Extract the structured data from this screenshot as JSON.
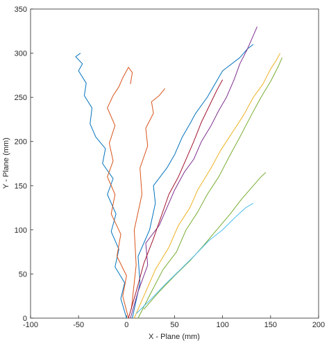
{
  "chart_data": {
    "type": "line",
    "xlabel": "X - Plane (mm)",
    "ylabel": "Y - Plane (mm)",
    "xlim": [
      -100,
      200
    ],
    "xticks": [
      -100,
      -50,
      0,
      50,
      100,
      150,
      200
    ],
    "ylim": [
      0,
      350
    ],
    "yticks": [
      0,
      50,
      100,
      150,
      200,
      250,
      300,
      350
    ],
    "series": [
      {
        "color": "#0072BD",
        "x": [
          0,
          -6,
          -2,
          -12,
          -8,
          -16,
          -11,
          -20,
          -14,
          -25,
          -22,
          -32,
          -38,
          -36,
          -44,
          -42,
          -50,
          -46,
          -53,
          -48
        ],
        "values": [
          0,
          22,
          40,
          58,
          78,
          98,
          118,
          140,
          158,
          175,
          192,
          205,
          220,
          238,
          252,
          266,
          280,
          288,
          296,
          300
        ]
      },
      {
        "color": "#D95319",
        "x": [
          2,
          -4,
          0,
          -10,
          -6,
          -16,
          -12,
          -20,
          -14,
          -18,
          -12,
          -20,
          -14,
          -8,
          -4,
          2,
          6,
          4
        ],
        "values": [
          0,
          25,
          48,
          70,
          95,
          118,
          140,
          160,
          178,
          198,
          218,
          238,
          252,
          262,
          272,
          284,
          278,
          265
        ]
      },
      {
        "color": "#D95319",
        "x": [
          5,
          10,
          8,
          16,
          14,
          22,
          20,
          28,
          26,
          34,
          40
        ],
        "values": [
          10,
          60,
          100,
          140,
          170,
          195,
          215,
          232,
          245,
          252,
          260
        ]
      },
      {
        "color": "#0072BD",
        "x": [
          6,
          14,
          12,
          24,
          30,
          28,
          42,
          50,
          58,
          66,
          72,
          84,
          92,
          100,
          106,
          118,
          126,
          132
        ],
        "values": [
          0,
          40,
          70,
          100,
          130,
          150,
          170,
          185,
          205,
          220,
          232,
          250,
          265,
          280,
          285,
          295,
          305,
          310
        ]
      },
      {
        "color": "#7E2F8E",
        "x": [
          4,
          12,
          22,
          20,
          34,
          42,
          50,
          60,
          70,
          78,
          88,
          96,
          104,
          112,
          118,
          126,
          132,
          136
        ],
        "values": [
          0,
          30,
          60,
          85,
          105,
          125,
          145,
          165,
          180,
          200,
          218,
          235,
          250,
          270,
          288,
          305,
          320,
          330
        ]
      },
      {
        "color": "#EDB120",
        "x": [
          8,
          20,
          30,
          44,
          54,
          66,
          74,
          88,
          98,
          110,
          122,
          132,
          142,
          150,
          156,
          160
        ],
        "values": [
          0,
          30,
          55,
          80,
          105,
          125,
          145,
          170,
          190,
          210,
          230,
          250,
          265,
          282,
          292,
          300
        ]
      },
      {
        "color": "#77AC30",
        "x": [
          12,
          26,
          38,
          52,
          62,
          74,
          84,
          96,
          108,
          118,
          130,
          140,
          150,
          158,
          162
        ],
        "values": [
          0,
          30,
          55,
          75,
          100,
          120,
          140,
          160,
          185,
          205,
          230,
          250,
          268,
          285,
          295
        ]
      },
      {
        "color": "#77AC30",
        "x": [
          18,
          34,
          50,
          66,
          80,
          94,
          108,
          120,
          132,
          140,
          145
        ],
        "values": [
          10,
          30,
          48,
          65,
          82,
          100,
          118,
          135,
          150,
          160,
          165
        ]
      },
      {
        "color": "#4DBEEE",
        "x": [
          10,
          26,
          40,
          56,
          70,
          86,
          100,
          114,
          124,
          132
        ],
        "values": [
          5,
          22,
          38,
          55,
          70,
          88,
          100,
          115,
          125,
          130
        ]
      },
      {
        "color": "#A2142F",
        "x": [
          2,
          10,
          18,
          28,
          36,
          44,
          54,
          62,
          70,
          78,
          86,
          94,
          100
        ],
        "values": [
          0,
          30,
          62,
          90,
          115,
          140,
          160,
          180,
          200,
          222,
          240,
          258,
          270
        ]
      }
    ]
  }
}
